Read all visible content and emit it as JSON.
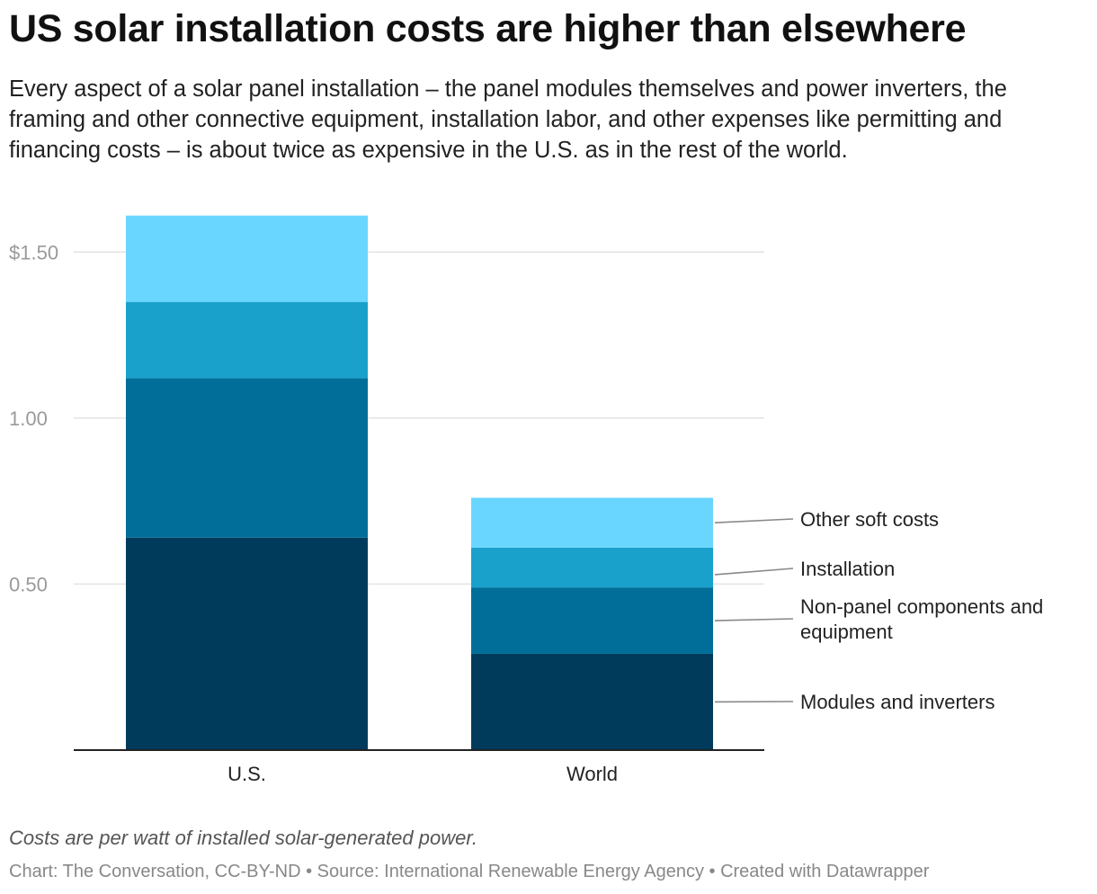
{
  "header": {
    "title": "US solar installation costs are higher than elsewhere",
    "subtitle": "Every aspect of a solar panel installation – the panel modules themselves and power inverters, the framing and other connective equipment, installation labor, and other expenses like permitting and financing costs – is about twice as expensive in the U.S. as in the rest of the world."
  },
  "chart_data": {
    "type": "bar",
    "stacked": true,
    "categories": [
      "U.S.",
      "World"
    ],
    "series": [
      {
        "name": "Modules and inverters",
        "label_lines": [
          "Modules and inverters"
        ],
        "color": "#003b5c",
        "values": [
          0.64,
          0.29
        ]
      },
      {
        "name": "Non-panel components and equipment",
        "label_lines": [
          "Non-panel components and",
          "equipment"
        ],
        "color": "#006e99",
        "values": [
          0.48,
          0.2
        ]
      },
      {
        "name": "Installation",
        "label_lines": [
          "Installation"
        ],
        "color": "#19a1cc",
        "values": [
          0.23,
          0.12
        ]
      },
      {
        "name": "Other soft costs",
        "label_lines": [
          "Other soft costs"
        ],
        "color": "#69d6ff",
        "values": [
          0.26,
          0.15
        ]
      }
    ],
    "ylim": [
      0,
      1.62
    ],
    "yticks": [
      {
        "value": 0.5,
        "label": "0.50"
      },
      {
        "value": 1.0,
        "label": "1.00"
      },
      {
        "value": 1.5,
        "label": "$1.50"
      }
    ],
    "xlabel": "",
    "ylabel": "",
    "grid": true,
    "legend": "direct labels right of World bar"
  },
  "footer": {
    "note": "Costs are per watt of installed solar-generated power.",
    "credit": "Chart: The Conversation, CC-BY-ND • Source: International Renewable Energy Agency • Created with Datawrapper"
  }
}
